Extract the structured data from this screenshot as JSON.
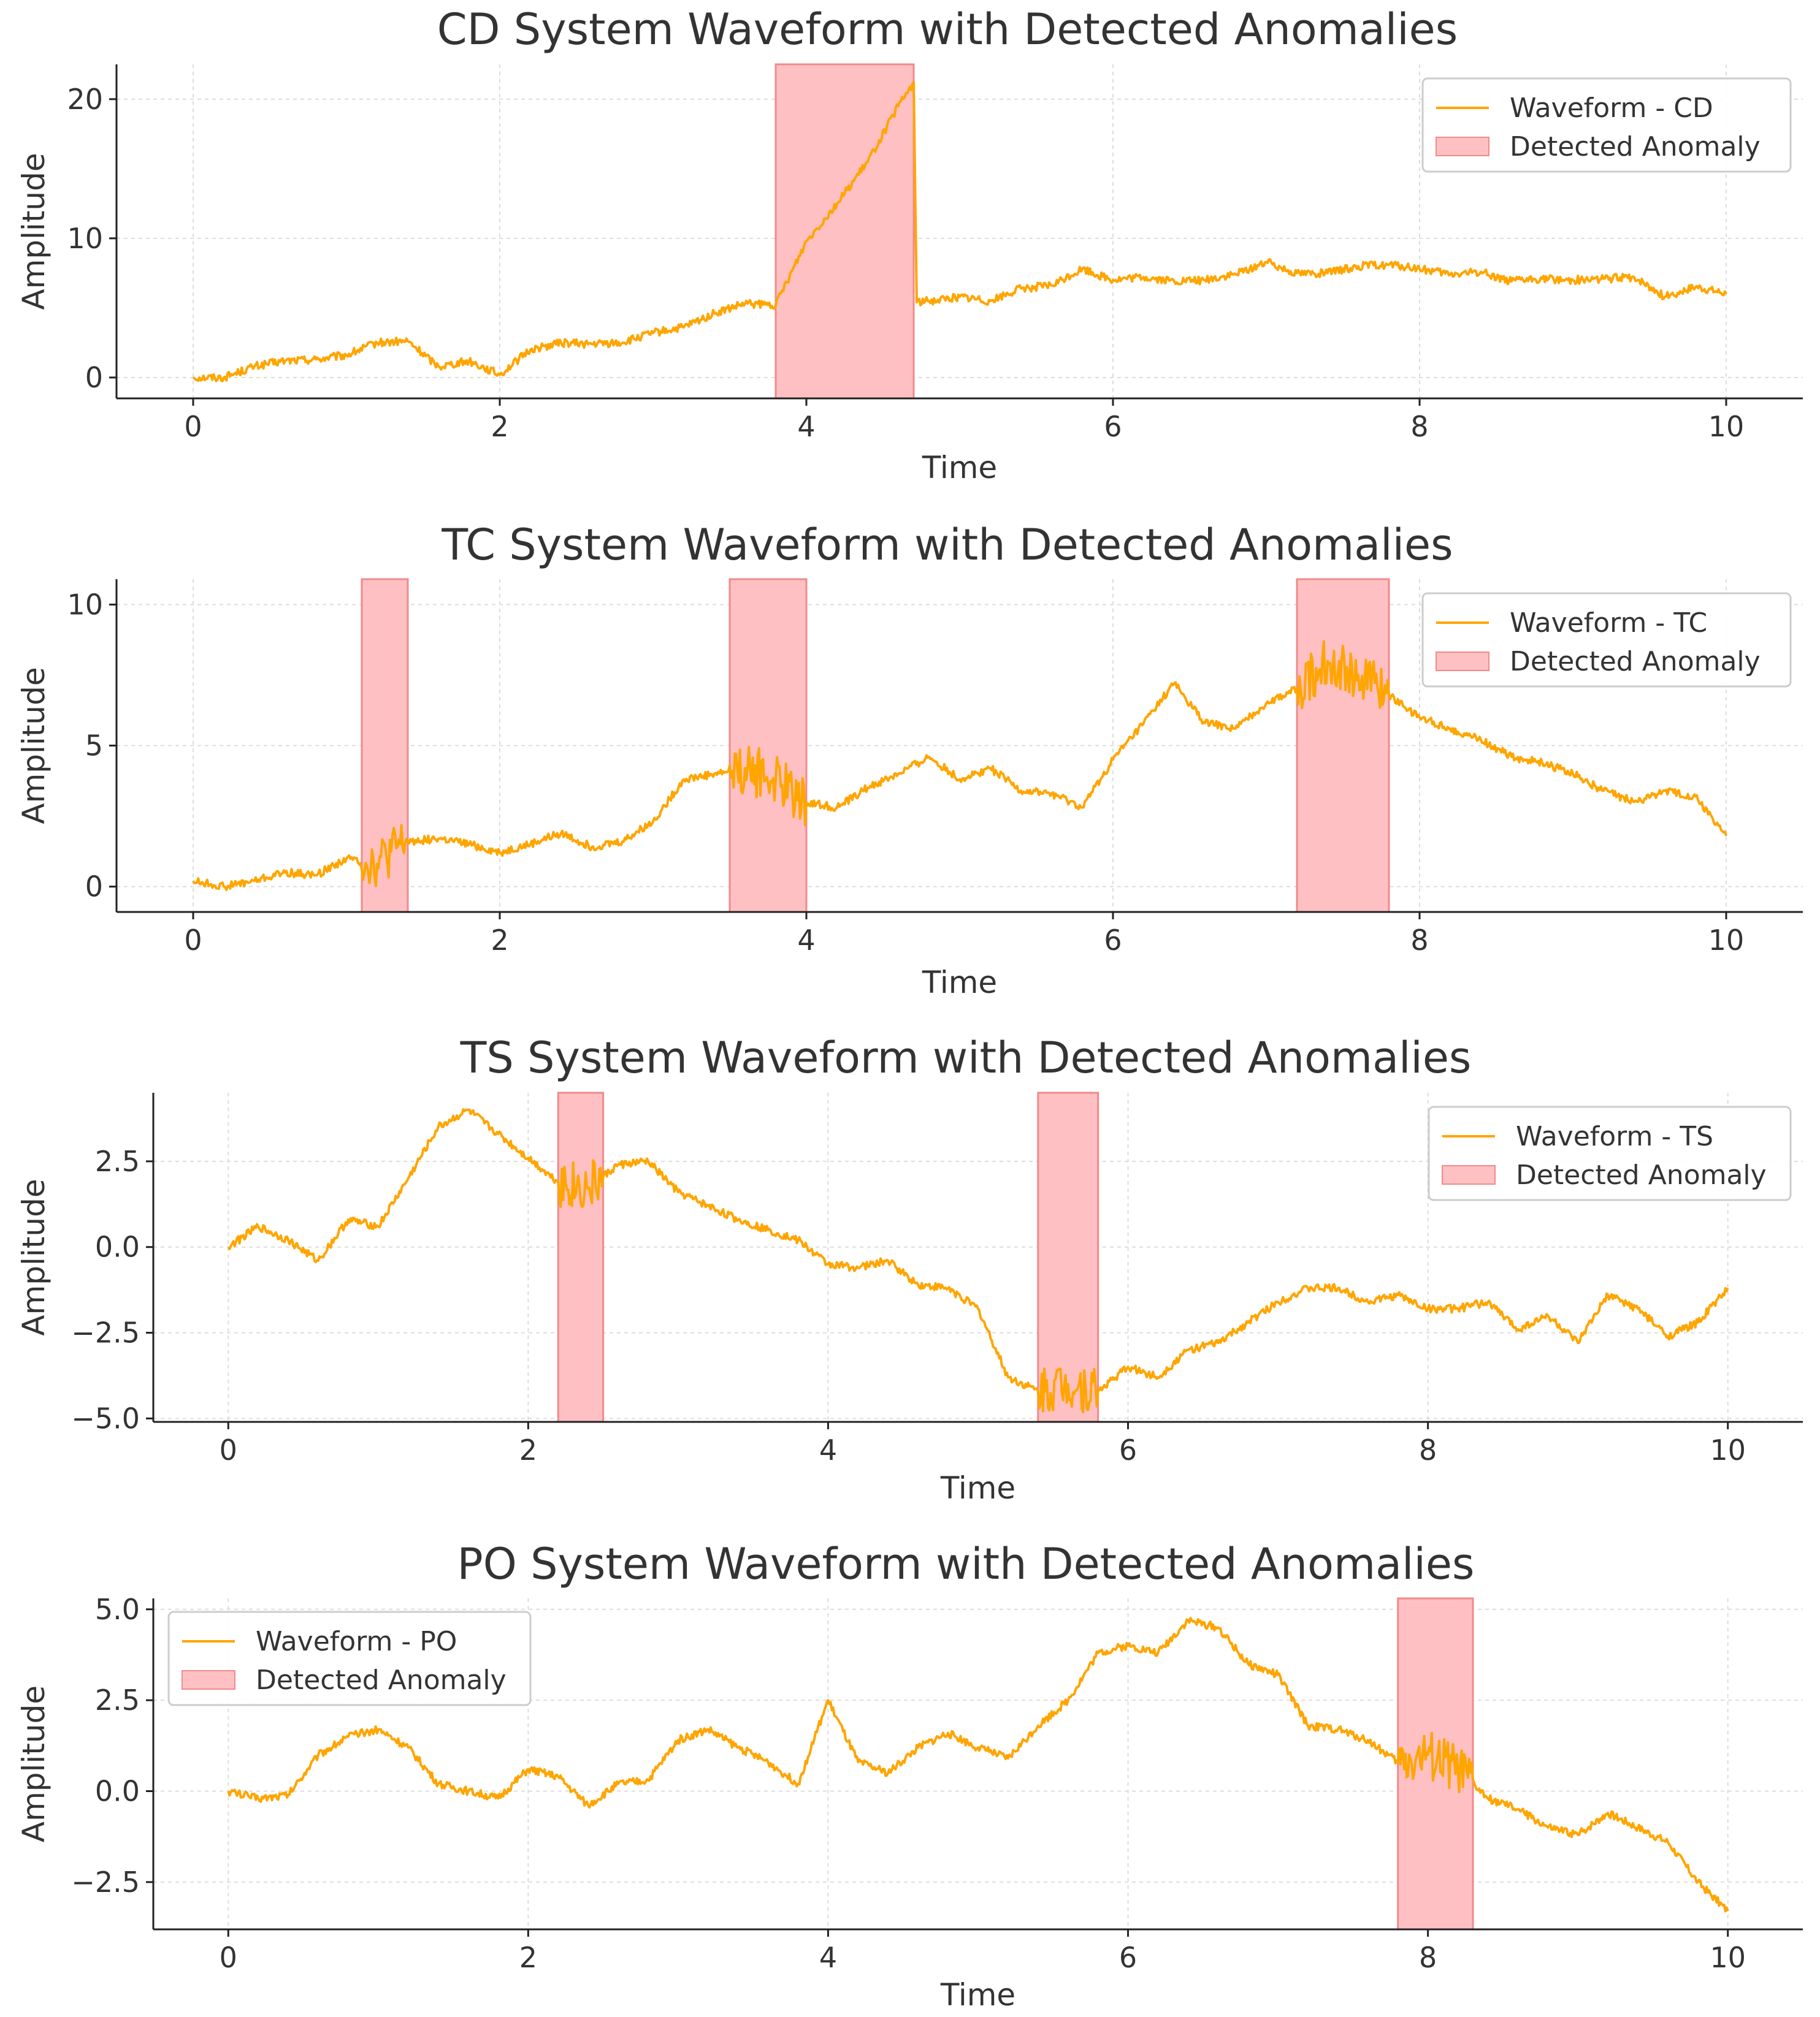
{
  "colors": {
    "waveform": "#FFA500",
    "anomaly_fill": "#FFC0C3",
    "anomaly_edge": "#F08A8A",
    "grid": "#DDDDDD",
    "axis": "#222222",
    "text": "#333333"
  },
  "chart_data": [
    {
      "type": "line",
      "title": "CD System Waveform with Detected Anomalies",
      "xlabel": "Time",
      "ylabel": "Amplitude",
      "xlim": [
        -0.5,
        10.5
      ],
      "ylim": [
        -1.5,
        22.5
      ],
      "xticks": [
        0,
        2,
        4,
        6,
        8,
        10
      ],
      "xtick_labels": [
        "0",
        "2",
        "4",
        "6",
        "8",
        "10"
      ],
      "yticks": [
        0,
        10,
        20
      ],
      "ytick_labels": [
        "0",
        "10",
        "20"
      ],
      "grid": true,
      "legend_position": "top-right",
      "series": [
        {
          "name": "Waveform - CD",
          "x": [
            0,
            0.2,
            0.4,
            0.6,
            0.8,
            1.0,
            1.2,
            1.4,
            1.6,
            1.8,
            2.0,
            2.2,
            2.4,
            2.6,
            2.8,
            3.0,
            3.2,
            3.4,
            3.6,
            3.8,
            4.0,
            4.2,
            4.4,
            4.6,
            4.7,
            4.72,
            4.8,
            5.0,
            5.2,
            5.4,
            5.6,
            5.8,
            6.0,
            6.2,
            6.4,
            6.6,
            6.8,
            7.0,
            7.2,
            7.4,
            7.6,
            7.8,
            8.0,
            8.2,
            8.4,
            8.6,
            8.8,
            9.0,
            9.2,
            9.4,
            9.6,
            9.8,
            10.0
          ],
          "y": [
            0,
            0,
            0.8,
            1.2,
            1.3,
            1.6,
            2.5,
            2.6,
            0.8,
            1.2,
            0.2,
            2.0,
            2.5,
            2.4,
            2.5,
            3.2,
            3.6,
            4.6,
            5.3,
            5.2,
            9.8,
            12.5,
            15.5,
            19.5,
            21.2,
            5.4,
            5.5,
            5.8,
            5.5,
            6.4,
            6.6,
            7.8,
            7.0,
            7.2,
            6.9,
            7.0,
            7.4,
            8.3,
            7.5,
            7.5,
            8.0,
            8.1,
            7.8,
            7.4,
            7.6,
            6.9,
            7.1,
            7.0,
            7.1,
            7.2,
            5.8,
            6.5,
            6.0
          ]
        }
      ],
      "anomalies": [
        {
          "start": 3.8,
          "end": 4.7
        }
      ],
      "legend": [
        "Waveform - CD",
        "Detected Anomaly"
      ]
    },
    {
      "type": "line",
      "title": "TC System Waveform with Detected Anomalies",
      "xlabel": "Time",
      "ylabel": "Amplitude",
      "xlim": [
        -0.5,
        10.5
      ],
      "ylim": [
        -0.9,
        10.9
      ],
      "xticks": [
        0,
        2,
        4,
        6,
        8,
        10
      ],
      "xtick_labels": [
        "0",
        "2",
        "4",
        "6",
        "8",
        "10"
      ],
      "yticks": [
        0,
        5,
        10
      ],
      "ytick_labels": [
        "0",
        "5",
        "10"
      ],
      "grid": true,
      "legend_position": "top-right",
      "series": [
        {
          "name": "Waveform - TC",
          "x": [
            0,
            0.2,
            0.4,
            0.6,
            0.8,
            1.0,
            1.2,
            1.4,
            1.6,
            1.8,
            2.0,
            2.2,
            2.4,
            2.6,
            2.8,
            3.0,
            3.2,
            3.4,
            3.6,
            3.8,
            4.0,
            4.2,
            4.4,
            4.6,
            4.8,
            5.0,
            5.2,
            5.4,
            5.6,
            5.8,
            6.0,
            6.2,
            6.4,
            6.6,
            6.8,
            7.0,
            7.2,
            7.4,
            7.6,
            7.8,
            8.0,
            8.2,
            8.4,
            8.6,
            8.8,
            9.0,
            9.2,
            9.4,
            9.6,
            9.8,
            10.0
          ],
          "y": [
            0.2,
            0.0,
            0.2,
            0.5,
            0.4,
            1.0,
            0.8,
            1.6,
            1.7,
            1.5,
            1.2,
            1.5,
            1.9,
            1.4,
            1.6,
            2.3,
            3.8,
            4.0,
            4.2,
            3.8,
            3.0,
            2.8,
            3.5,
            4.0,
            4.6,
            3.8,
            4.2,
            3.4,
            3.3,
            2.8,
            4.5,
            5.8,
            7.2,
            5.8,
            5.6,
            6.5,
            7.0,
            8.0,
            7.5,
            6.8,
            6.0,
            5.6,
            5.2,
            4.6,
            4.4,
            4.0,
            3.4,
            3.0,
            3.4,
            3.2,
            1.8
          ]
        }
      ],
      "anomalies": [
        {
          "start": 1.1,
          "end": 1.4
        },
        {
          "start": 3.5,
          "end": 4.0
        },
        {
          "start": 7.2,
          "end": 7.8
        }
      ],
      "legend": [
        "Waveform - TC",
        "Detected Anomaly"
      ]
    },
    {
      "type": "line",
      "title": "TS System Waveform with Detected Anomalies",
      "xlabel": "Time",
      "ylabel": "Amplitude",
      "xlim": [
        -0.5,
        10.5
      ],
      "ylim": [
        -5.1,
        4.5
      ],
      "xticks": [
        0,
        2,
        4,
        6,
        8,
        10
      ],
      "xtick_labels": [
        "0",
        "2",
        "4",
        "6",
        "8",
        "10"
      ],
      "yticks": [
        2.5,
        0,
        -2.5,
        -5
      ],
      "ytick_labels": [
        "2.5",
        "0.0",
        "−2.5",
        "−5.0"
      ],
      "grid": true,
      "legend_position": "top-right",
      "series": [
        {
          "name": "Waveform - TS",
          "x": [
            0,
            0.2,
            0.4,
            0.6,
            0.8,
            1.0,
            1.2,
            1.4,
            1.6,
            1.8,
            2.0,
            2.2,
            2.4,
            2.6,
            2.8,
            3.0,
            3.2,
            3.4,
            3.6,
            3.8,
            4.0,
            4.2,
            4.4,
            4.6,
            4.8,
            5.0,
            5.2,
            5.4,
            5.6,
            5.8,
            6.0,
            6.2,
            6.4,
            6.6,
            6.8,
            7.0,
            7.2,
            7.4,
            7.6,
            7.8,
            8.0,
            8.2,
            8.4,
            8.6,
            8.8,
            9.0,
            9.2,
            9.4,
            9.6,
            9.8,
            10.0
          ],
          "y": [
            0.0,
            0.6,
            0.2,
            -0.4,
            0.8,
            0.6,
            2.0,
            3.5,
            4.0,
            3.3,
            2.6,
            1.9,
            1.7,
            2.4,
            2.5,
            1.6,
            1.2,
            0.8,
            0.5,
            0.2,
            -0.5,
            -0.6,
            -0.4,
            -1.1,
            -1.2,
            -1.8,
            -3.8,
            -4.2,
            -4.0,
            -4.2,
            -3.5,
            -3.8,
            -3.0,
            -2.8,
            -2.2,
            -1.6,
            -1.2,
            -1.2,
            -1.6,
            -1.4,
            -1.8,
            -1.8,
            -1.6,
            -2.4,
            -2.0,
            -2.8,
            -1.4,
            -1.8,
            -2.6,
            -2.2,
            -1.2
          ]
        }
      ],
      "anomalies": [
        {
          "start": 2.2,
          "end": 2.5
        },
        {
          "start": 5.4,
          "end": 5.8
        }
      ],
      "legend": [
        "Waveform - TS",
        "Detected Anomaly"
      ]
    },
    {
      "type": "line",
      "title": "PO System Waveform with Detected Anomalies",
      "xlabel": "Time",
      "ylabel": "Amplitude",
      "xlim": [
        -0.5,
        10.5
      ],
      "ylim": [
        -3.8,
        5.3
      ],
      "xticks": [
        0,
        2,
        4,
        6,
        8,
        10
      ],
      "xtick_labels": [
        "0",
        "2",
        "4",
        "6",
        "8",
        "10"
      ],
      "yticks": [
        5,
        2.5,
        0,
        -2.5
      ],
      "ytick_labels": [
        "5.0",
        "2.5",
        "0.0",
        "−2.5"
      ],
      "grid": true,
      "legend_position": "top-left",
      "series": [
        {
          "name": "Waveform - PO",
          "x": [
            0,
            0.2,
            0.4,
            0.6,
            0.8,
            1.0,
            1.2,
            1.4,
            1.6,
            1.8,
            2.0,
            2.2,
            2.4,
            2.6,
            2.8,
            3.0,
            3.2,
            3.4,
            3.6,
            3.8,
            4.0,
            4.2,
            4.4,
            4.6,
            4.8,
            5.0,
            5.2,
            5.4,
            5.6,
            5.8,
            6.0,
            6.2,
            6.4,
            6.6,
            6.8,
            7.0,
            7.2,
            7.4,
            7.6,
            7.8,
            8.0,
            8.2,
            8.4,
            8.6,
            8.8,
            9.0,
            9.2,
            9.4,
            9.6,
            9.8,
            10.0
          ],
          "y": [
            0.0,
            -0.2,
            -0.1,
            1.0,
            1.5,
            1.7,
            1.2,
            0.2,
            0.0,
            -0.2,
            0.6,
            0.4,
            -0.4,
            0.2,
            0.3,
            1.4,
            1.7,
            1.2,
            0.8,
            0.2,
            2.5,
            0.8,
            0.5,
            1.2,
            1.6,
            1.2,
            0.9,
            1.8,
            2.5,
            3.8,
            4.0,
            3.8,
            4.7,
            4.5,
            3.5,
            3.2,
            1.8,
            1.7,
            1.4,
            0.8,
            1.0,
            0.6,
            -0.2,
            -0.5,
            -1.0,
            -1.2,
            -0.6,
            -1.0,
            -1.4,
            -2.5,
            -3.3
          ]
        }
      ],
      "anomalies": [
        {
          "start": 7.8,
          "end": 8.3
        }
      ],
      "legend": [
        "Waveform - PO",
        "Detected Anomaly"
      ]
    }
  ]
}
